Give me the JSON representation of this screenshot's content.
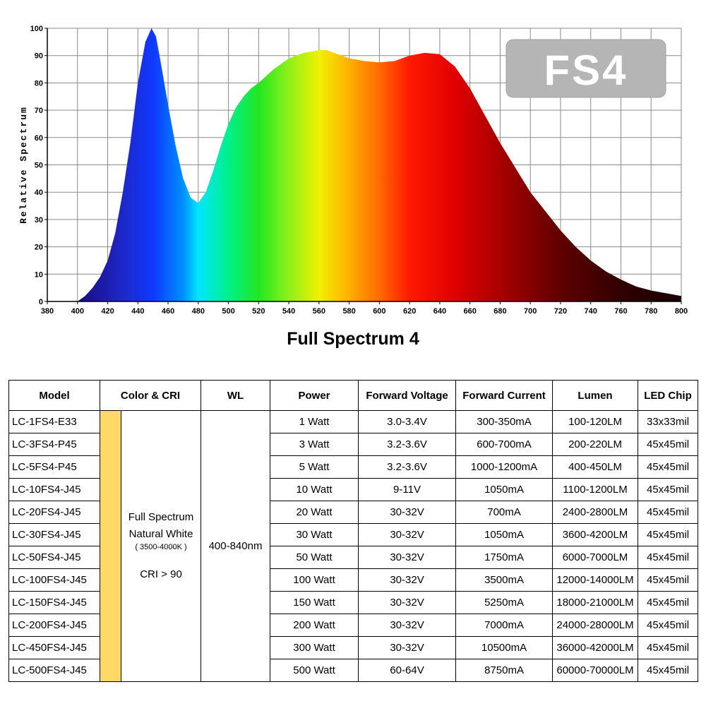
{
  "chart_data": {
    "type": "area",
    "title": "Full Spectrum 4",
    "xlabel": "",
    "ylabel": "Relative Spectrum",
    "badge": "FS4",
    "xlim": [
      380,
      800
    ],
    "ylim": [
      0,
      100
    ],
    "x_ticks": [
      380,
      400,
      420,
      440,
      460,
      480,
      500,
      520,
      540,
      560,
      580,
      600,
      620,
      640,
      660,
      680,
      700,
      720,
      740,
      760,
      780,
      800
    ],
    "y_ticks": [
      0,
      10,
      20,
      30,
      40,
      50,
      60,
      70,
      80,
      90,
      100
    ],
    "grid": true,
    "x": [
      400,
      405,
      410,
      415,
      420,
      425,
      430,
      435,
      440,
      445,
      449,
      452,
      455,
      460,
      465,
      470,
      475,
      480,
      485,
      490,
      495,
      500,
      505,
      510,
      515,
      520,
      530,
      540,
      550,
      560,
      565,
      570,
      580,
      590,
      600,
      610,
      620,
      630,
      640,
      650,
      660,
      670,
      680,
      690,
      700,
      710,
      720,
      730,
      740,
      750,
      760,
      770,
      780,
      790,
      800
    ],
    "y": [
      0,
      2,
      5,
      9,
      15,
      25,
      40,
      58,
      80,
      95,
      100,
      97,
      88,
      72,
      57,
      45,
      38,
      36,
      40,
      48,
      57,
      65,
      71,
      75,
      78,
      80,
      85,
      89,
      91,
      92,
      92,
      91,
      89,
      88,
      87.5,
      88,
      90,
      91,
      90.5,
      86,
      78,
      68,
      58,
      49,
      40,
      33,
      26,
      20,
      15,
      11,
      8,
      5.5,
      4,
      3,
      2
    ],
    "color_stops": [
      {
        "nm": 400,
        "color": "#1a0a80"
      },
      {
        "nm": 430,
        "color": "#1e28c8"
      },
      {
        "nm": 450,
        "color": "#1038ff"
      },
      {
        "nm": 470,
        "color": "#0090ff"
      },
      {
        "nm": 480,
        "color": "#00e6ff"
      },
      {
        "nm": 500,
        "color": "#00f08a"
      },
      {
        "nm": 520,
        "color": "#22e622"
      },
      {
        "nm": 540,
        "color": "#8ef01a"
      },
      {
        "nm": 560,
        "color": "#f0f000"
      },
      {
        "nm": 580,
        "color": "#ffb000"
      },
      {
        "nm": 600,
        "color": "#ff6a00"
      },
      {
        "nm": 620,
        "color": "#ff1a00"
      },
      {
        "nm": 650,
        "color": "#e00000"
      },
      {
        "nm": 680,
        "color": "#a80000"
      },
      {
        "nm": 720,
        "color": "#600000"
      },
      {
        "nm": 760,
        "color": "#300000"
      },
      {
        "nm": 800,
        "color": "#1a0000"
      }
    ]
  },
  "table": {
    "headers": [
      "Model",
      "Color & CRI",
      "WL",
      "Power",
      "Forward Voltage",
      "Forward Current",
      "Lumen",
      "LED Chip"
    ],
    "color_cri": {
      "line1": "Full Spectrum",
      "line2": "Natural White",
      "line3": "( 3500-4000K )",
      "line4": "CRI > 90"
    },
    "wl": "400-840nm",
    "rows": [
      {
        "model": "LC-1FS4-E33",
        "power": "1 Watt",
        "voltage": "3.0-3.4V",
        "current": "300-350mA",
        "lumen": "100-120LM",
        "chip": "33x33mil"
      },
      {
        "model": "LC-3FS4-P45",
        "power": "3 Watt",
        "voltage": "3.2-3.6V",
        "current": "600-700mA",
        "lumen": "200-220LM",
        "chip": "45x45mil"
      },
      {
        "model": "LC-5FS4-P45",
        "power": "5 Watt",
        "voltage": "3.2-3.6V",
        "current": "1000-1200mA",
        "lumen": "400-450LM",
        "chip": "45x45mil"
      },
      {
        "model": "LC-10FS4-J45",
        "power": "10 Watt",
        "voltage": "9-11V",
        "current": "1050mA",
        "lumen": "1100-1200LM",
        "chip": "45x45mil"
      },
      {
        "model": "LC-20FS4-J45",
        "power": "20 Watt",
        "voltage": "30-32V",
        "current": "700mA",
        "lumen": "2400-2800LM",
        "chip": "45x45mil"
      },
      {
        "model": "LC-30FS4-J45",
        "power": "30 Watt",
        "voltage": "30-32V",
        "current": "1050mA",
        "lumen": "3600-4200LM",
        "chip": "45x45mil"
      },
      {
        "model": "LC-50FS4-J45",
        "power": "50 Watt",
        "voltage": "30-32V",
        "current": "1750mA",
        "lumen": "6000-7000LM",
        "chip": "45x45mil"
      },
      {
        "model": "LC-100FS4-J45",
        "power": "100 Watt",
        "voltage": "30-32V",
        "current": "3500mA",
        "lumen": "12000-14000LM",
        "chip": "45x45mil"
      },
      {
        "model": "LC-150FS4-J45",
        "power": "150 Watt",
        "voltage": "30-32V",
        "current": "5250mA",
        "lumen": "18000-21000LM",
        "chip": "45x45mil"
      },
      {
        "model": "LC-200FS4-J45",
        "power": "200 Watt",
        "voltage": "30-32V",
        "current": "7000mA",
        "lumen": "24000-28000LM",
        "chip": "45x45mil"
      },
      {
        "model": "LC-450FS4-J45",
        "power": "300 Watt",
        "voltage": "30-32V",
        "current": "10500mA",
        "lumen": "36000-42000LM",
        "chip": "45x45mil"
      },
      {
        "model": "LC-500FS4-J45",
        "power": "500 Watt",
        "voltage": "60-64V",
        "current": "8750mA",
        "lumen": "60000-70000LM",
        "chip": "45x45mil"
      }
    ],
    "swatch_color": "#ffd966"
  }
}
